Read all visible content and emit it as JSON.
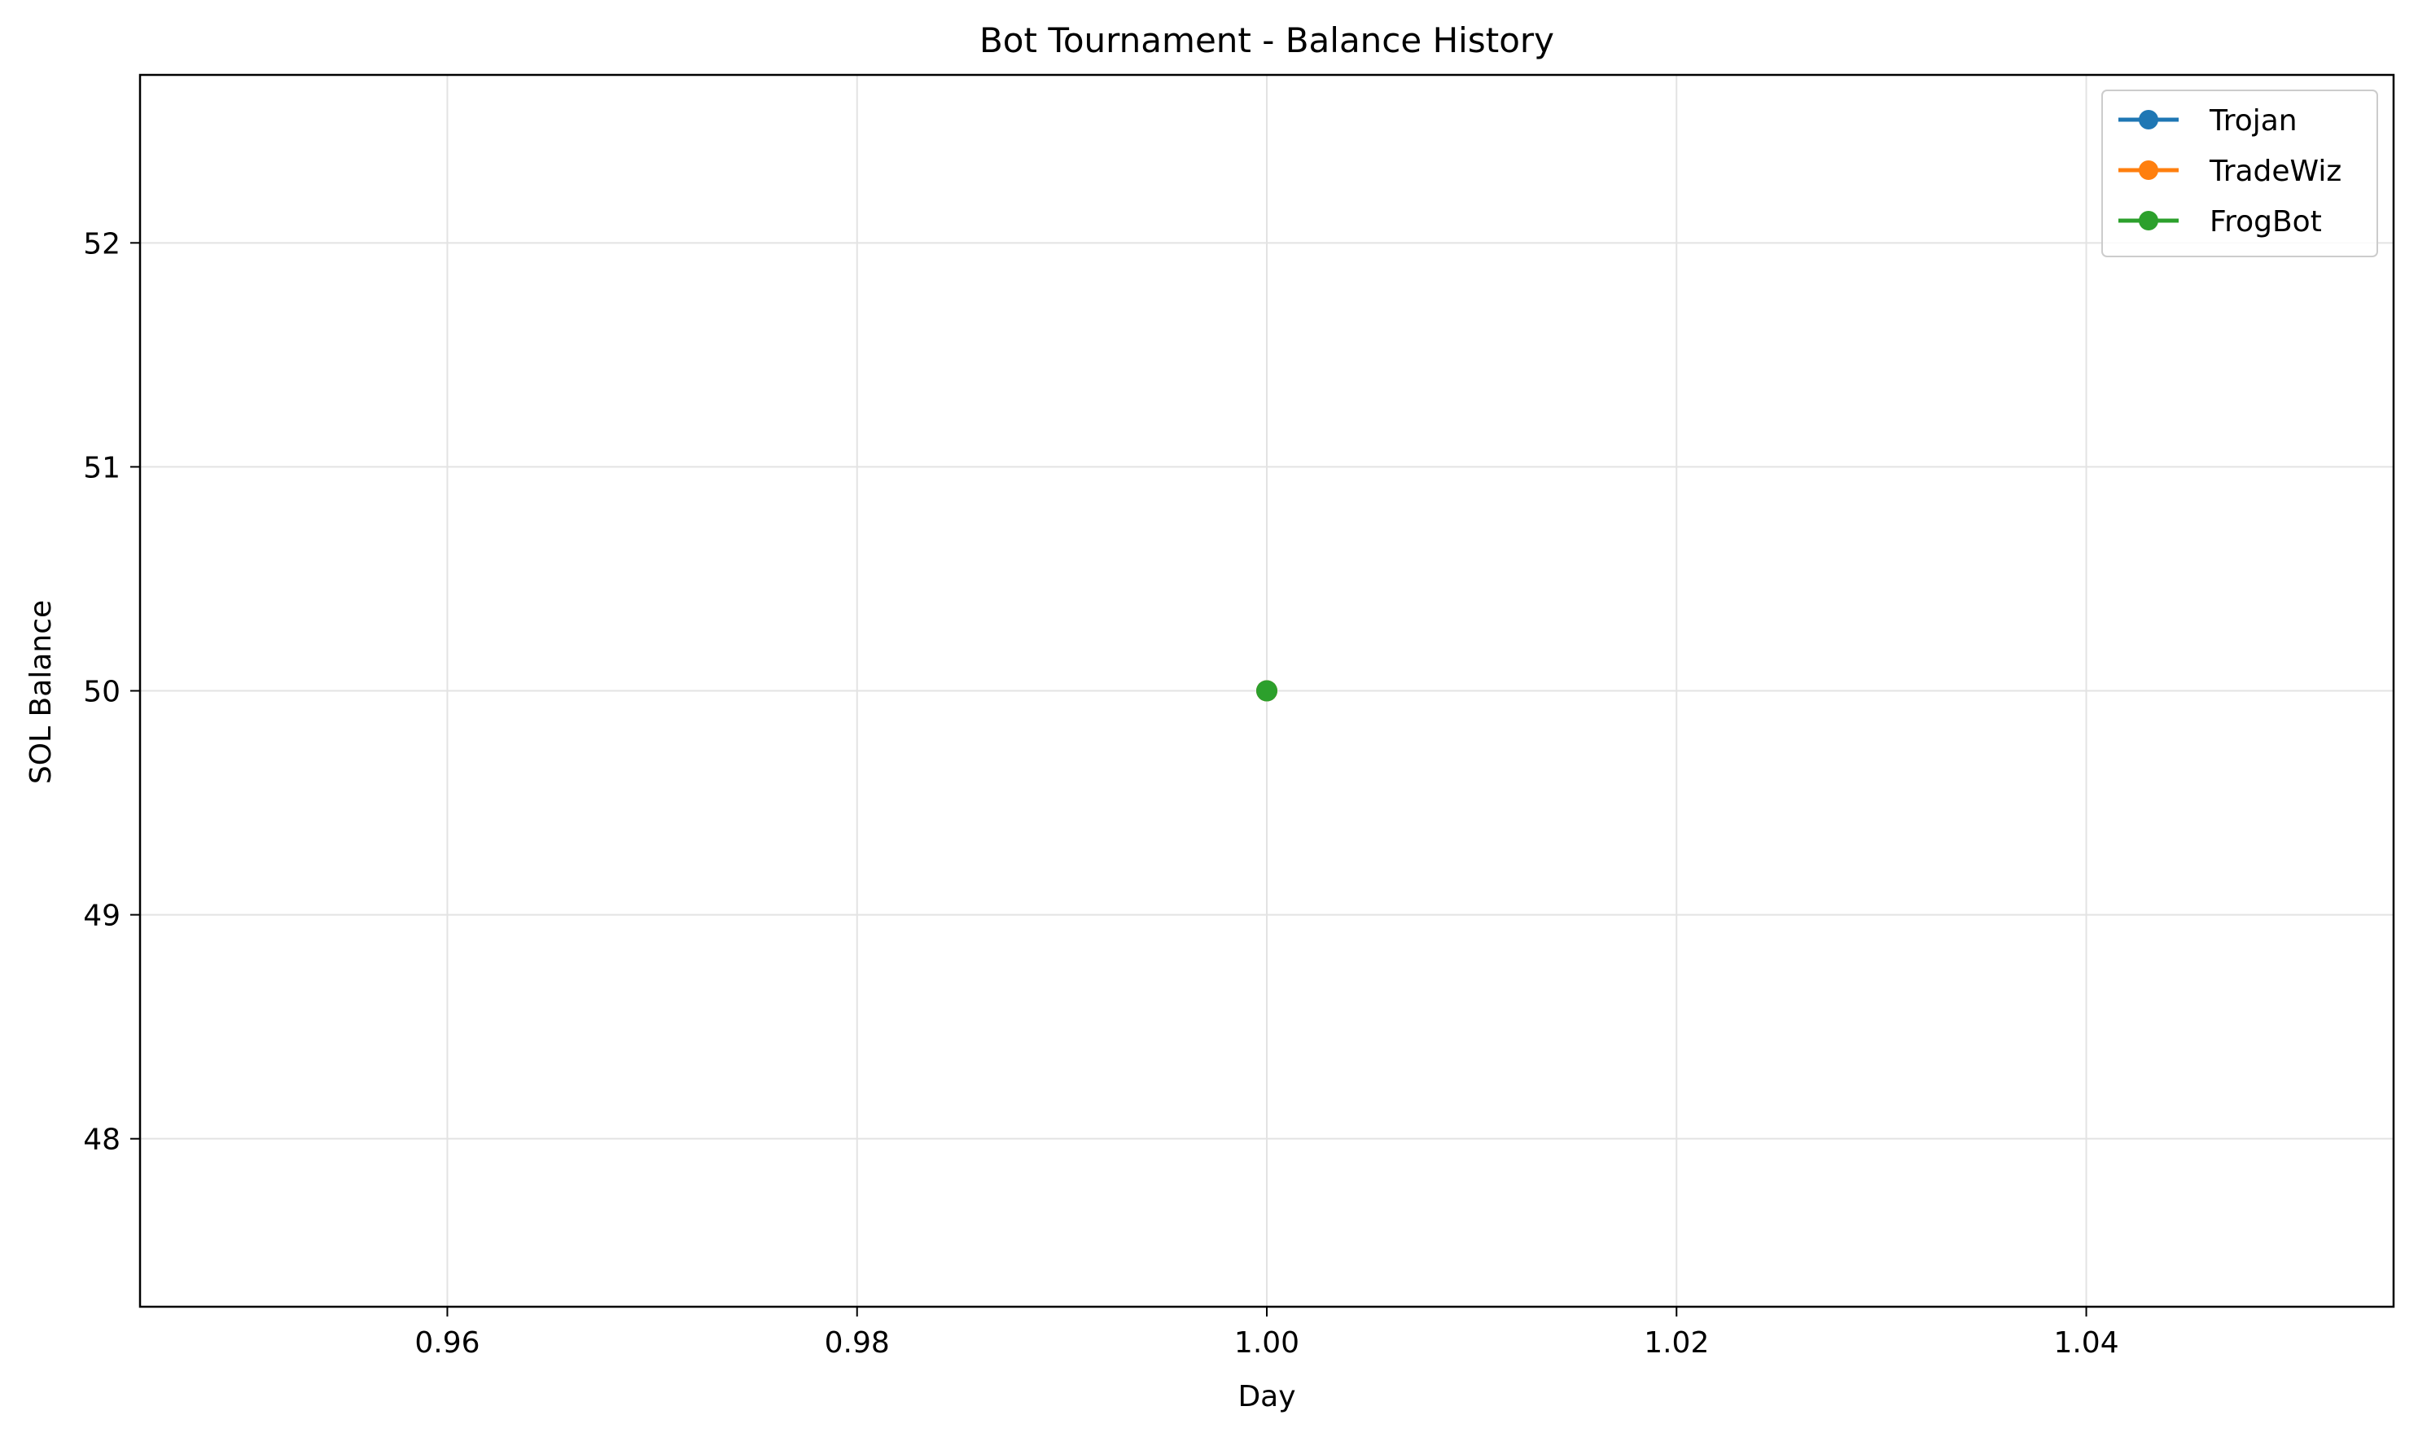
{
  "chart_data": {
    "type": "line",
    "title": "Bot Tournament - Balance History",
    "xlabel": "Day",
    "ylabel": "SOL Balance",
    "xlim": [
      0.945,
      1.055
    ],
    "ylim": [
      47.25,
      52.75
    ],
    "xticks": [
      0.96,
      0.98,
      1.0,
      1.02,
      1.04
    ],
    "xtick_labels": [
      "0.96",
      "0.98",
      "1.00",
      "1.02",
      "1.04"
    ],
    "yticks": [
      48,
      49,
      50,
      51,
      52
    ],
    "ytick_labels": [
      "48",
      "49",
      "50",
      "51",
      "52"
    ],
    "grid": true,
    "legend_position": "top-right",
    "series": [
      {
        "name": "Trojan",
        "color": "#1f77b4",
        "x": [
          1.0
        ],
        "y": [
          50
        ]
      },
      {
        "name": "TradeWiz",
        "color": "#ff7f0e",
        "x": [
          1.0
        ],
        "y": [
          50
        ]
      },
      {
        "name": "FrogBot",
        "color": "#2ca02c",
        "x": [
          1.0
        ],
        "y": [
          50
        ]
      }
    ]
  }
}
